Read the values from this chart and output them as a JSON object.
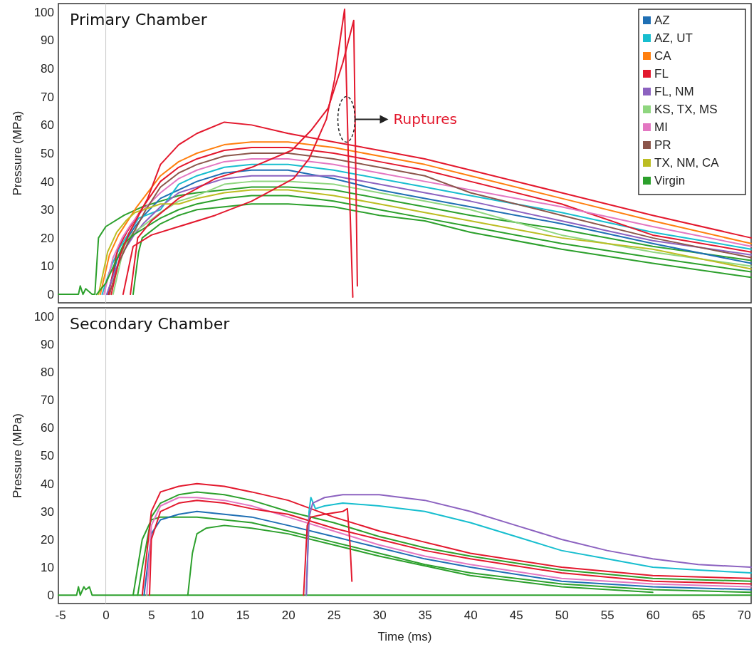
{
  "chart_data": [
    {
      "type": "line",
      "title": "Primary Chamber",
      "ylabel": "Pressure (MPa)",
      "xlim": [
        -5.2,
        70.8
      ],
      "ylim": [
        -3,
        103
      ],
      "xticks": [
        -5,
        0,
        5,
        10,
        15,
        20,
        25,
        30,
        35,
        40,
        45,
        50,
        55,
        60,
        65,
        70
      ],
      "yticks": [
        0,
        10,
        20,
        30,
        40,
        50,
        60,
        70,
        80,
        90,
        100
      ],
      "tick_labels": "y",
      "legend": "top right",
      "ref_lines": [
        {
          "axis": "x",
          "value": 0,
          "color": "#c8c8c8"
        }
      ],
      "annotations": [
        {
          "text": "Ruptures",
          "x": 27.1,
          "y": 62
        }
      ],
      "series": [
        {
          "color": "#2ca02c",
          "x": [
            -5.2,
            -3,
            -2.8,
            -2.5,
            -2.2,
            -1.5,
            -1.3
          ],
          "values": [
            0,
            0,
            3,
            0,
            2,
            0,
            0
          ]
        },
        {
          "color": "#2ca02c",
          "x": [
            3,
            3.6,
            4,
            6,
            8,
            10,
            13,
            16,
            20,
            25,
            30,
            35,
            40,
            50,
            60,
            70.8
          ],
          "values": [
            0,
            15,
            20,
            25,
            28,
            30,
            31,
            32,
            32,
            31,
            28,
            26,
            22,
            16,
            11,
            6
          ]
        },
        {
          "color": "#2ca02c",
          "x": [
            -1.2,
            -0.8,
            0,
            2,
            4,
            6,
            8,
            10,
            13,
            16,
            20,
            25,
            30,
            35,
            40,
            50,
            60,
            70.8
          ],
          "values": [
            0,
            20,
            24,
            28,
            31,
            33,
            35,
            36,
            37,
            38,
            38,
            37,
            34,
            31,
            28,
            23,
            17,
            12
          ]
        },
        {
          "name": "AZ",
          "color": "#1f6fb4",
          "x": [
            0.2,
            1.2,
            2.2,
            3.2,
            4.2,
            6,
            8,
            10,
            13,
            16,
            20,
            25,
            30,
            35,
            40,
            50,
            60,
            70.8
          ],
          "values": [
            0,
            12,
            19,
            24,
            28,
            34,
            37,
            40,
            43,
            44,
            44,
            41,
            37,
            34,
            31,
            25,
            18,
            11
          ]
        },
        {
          "name": "AZ, UT",
          "color": "#17becf",
          "x": [
            -0.4,
            0.6,
            1.6,
            2.6,
            3.6,
            6,
            8,
            10,
            13,
            16,
            20,
            25,
            30,
            35,
            40,
            50,
            60,
            70.8
          ],
          "values": [
            0,
            10,
            17,
            22,
            27,
            30,
            39,
            42,
            45,
            46,
            46,
            44,
            41,
            38,
            35,
            29,
            22,
            16
          ]
        },
        {
          "name": "CA",
          "color": "#ff7f0e",
          "x": [
            -0.6,
            0.4,
            1.4,
            2.4,
            3.4,
            6,
            8,
            10,
            13,
            16,
            20,
            25,
            30,
            35,
            40,
            50,
            60,
            70.8
          ],
          "values": [
            0,
            14,
            21,
            26,
            31,
            42,
            47,
            50,
            53,
            54,
            54,
            52,
            49,
            46,
            42,
            34,
            26,
            18
          ]
        },
        {
          "name": "FL",
          "color": "#e3182d",
          "x": [
            0.3,
            1.3,
            2.3,
            3.3,
            4.3,
            6,
            8,
            10,
            13,
            16,
            20,
            25,
            30,
            35,
            40,
            50,
            60,
            70.8
          ],
          "values": [
            0,
            16,
            22,
            27,
            32,
            40,
            45,
            48,
            51,
            52,
            52,
            50,
            47,
            44,
            40,
            32,
            21,
            15
          ]
        },
        {
          "name": "FL, NM",
          "color": "#8c62c0",
          "x": [
            0.1,
            1.1,
            2.1,
            3.1,
            4.1,
            6,
            8,
            10,
            13,
            16,
            20,
            25,
            30,
            35,
            40,
            50,
            60,
            70.8
          ],
          "values": [
            0,
            9,
            16,
            21,
            25,
            31,
            36,
            38,
            41,
            42,
            42,
            42,
            39,
            36,
            33,
            26,
            19,
            14
          ]
        },
        {
          "name": "KS, TX, MS",
          "color": "#8fd67f",
          "x": [
            0.8,
            2,
            3,
            4,
            6,
            8,
            10,
            13,
            16,
            20,
            25,
            30,
            35,
            40,
            50,
            60,
            70.8
          ],
          "values": [
            0,
            17,
            22,
            24,
            29,
            33,
            35,
            39,
            40,
            40,
            39,
            36,
            33,
            30,
            21,
            15,
            10
          ]
        },
        {
          "name": "MI",
          "color": "#e377c2",
          "x": [
            -0.2,
            0.8,
            1.8,
            2.8,
            3.8,
            6,
            8,
            10,
            13,
            16,
            20,
            25,
            30,
            35,
            40,
            50,
            60,
            70.8
          ],
          "values": [
            0,
            13,
            20,
            25,
            29,
            36,
            41,
            44,
            47,
            48,
            48,
            46,
            43,
            40,
            37,
            31,
            24,
            17
          ]
        },
        {
          "name": "PR",
          "color": "#8c564b",
          "x": [
            0.4,
            1.4,
            2.4,
            3.4,
            4.4,
            6,
            8,
            10,
            13,
            16,
            20,
            25,
            30,
            35,
            40,
            50,
            60,
            70.8
          ],
          "values": [
            0,
            11,
            18,
            24,
            30,
            38,
            43,
            46,
            49,
            50,
            50,
            48,
            45,
            42,
            36,
            28,
            20,
            13
          ]
        },
        {
          "name": "TX, NM, CA",
          "color": "#bcbd22",
          "x": [
            -0.8,
            0.2,
            1.2,
            2.2,
            3.2,
            6,
            8,
            10,
            13,
            16,
            20,
            25,
            30,
            35,
            40,
            50,
            60,
            70.8
          ],
          "values": [
            0,
            15,
            22,
            26,
            29,
            32,
            32,
            34,
            36,
            37,
            37,
            35,
            32,
            29,
            26,
            20,
            16,
            9
          ]
        },
        {
          "name": "Virgin",
          "color": "#2ca02c",
          "x": [
            -1,
            0,
            1,
            2,
            3,
            4,
            6,
            8,
            10,
            13,
            16,
            20,
            25,
            30,
            35,
            40,
            50,
            60,
            70.8
          ],
          "values": [
            0,
            4,
            11,
            18,
            21,
            23,
            27,
            30,
            32,
            34,
            35,
            35,
            33,
            30,
            27,
            24,
            18,
            13,
            8
          ]
        },
        {
          "color": "#e3182d",
          "x": [
            0.6,
            1.6,
            2.6,
            3.6,
            4.6,
            6,
            8,
            10,
            13,
            16,
            20,
            25,
            30,
            35,
            40,
            50,
            60,
            70.8
          ],
          "values": [
            0,
            14,
            22,
            28,
            34,
            46,
            53,
            57,
            61,
            60,
            57,
            54,
            51,
            48,
            44,
            36,
            28,
            20
          ]
        },
        {
          "color": "#e3182d",
          "x": [
            1.9,
            3,
            5,
            8,
            12,
            16,
            20.6,
            22.3,
            24.2,
            25.1,
            25.7,
            26.2,
            26.6,
            27.1
          ],
          "values": [
            0,
            17,
            21,
            24,
            28,
            33,
            41,
            48,
            62,
            76,
            90,
            101,
            50,
            -1
          ]
        },
        {
          "color": "#e3182d",
          "x": [
            2.7,
            3.5,
            5,
            8,
            12,
            16,
            20.4,
            22.5,
            24.4,
            26,
            27.2,
            27.4,
            27.6
          ],
          "values": [
            0,
            20,
            26,
            34,
            41,
            45,
            51,
            58,
            66,
            82,
            97,
            50,
            3
          ]
        }
      ]
    },
    {
      "type": "line",
      "title": "Secondary Chamber",
      "xlabel": "Time (ms)",
      "ylabel": "Pressure (MPa)",
      "xlim": [
        -5.2,
        70.8
      ],
      "ylim": [
        -3,
        103
      ],
      "xticks": [
        -5,
        0,
        5,
        10,
        15,
        20,
        25,
        30,
        35,
        40,
        45,
        50,
        55,
        60,
        65,
        70
      ],
      "yticks": [
        0,
        10,
        20,
        30,
        40,
        50,
        60,
        70,
        80,
        90,
        100
      ],
      "ref_lines": [
        {
          "axis": "x",
          "value": 0,
          "color": "#c8c8c8"
        }
      ],
      "series": [
        {
          "color": "#2ca02c",
          "x": [
            -5.2,
            -3.2,
            -3,
            -2.8,
            -2.4,
            -2.2,
            -1.8,
            -1.5,
            -1.3,
            70.8
          ],
          "values": [
            0,
            0,
            3,
            0,
            3,
            2,
            3,
            0,
            0,
            0
          ]
        },
        {
          "color": "#2ca02c",
          "x": [
            3,
            4,
            5,
            6,
            8,
            10,
            13,
            16,
            20,
            25,
            30,
            35,
            40,
            50,
            60,
            70.8
          ],
          "values": [
            0,
            20,
            27,
            28,
            28,
            28,
            27,
            26,
            23,
            19,
            15,
            11,
            8,
            4,
            2,
            1
          ]
        },
        {
          "color": "#2ca02c",
          "x": [
            3.5,
            4,
            5,
            6,
            8,
            10,
            13,
            16,
            20,
            25,
            30,
            35,
            40,
            50,
            60,
            70.8
          ],
          "values": [
            0,
            10,
            28,
            33,
            36,
            37,
            36,
            34,
            30,
            26,
            21,
            17,
            14,
            9,
            6,
            5
          ]
        },
        {
          "color": "#2ca02c",
          "x": [
            9,
            9.5,
            10,
            11,
            13,
            16,
            20,
            25,
            30,
            40,
            50,
            60
          ],
          "values": [
            0,
            15,
            22,
            24,
            25,
            24,
            22,
            18,
            14,
            7,
            3,
            1
          ]
        },
        {
          "color": "#1f6fb4",
          "x": [
            4.2,
            5,
            6,
            8,
            10,
            13,
            16,
            20,
            25,
            30,
            35,
            40,
            50,
            60,
            70.8
          ],
          "values": [
            0,
            22,
            27,
            29,
            30,
            29,
            28,
            25,
            21,
            17,
            13,
            10,
            5,
            3,
            2
          ]
        },
        {
          "color": "#e377c2",
          "x": [
            4.5,
            5,
            6,
            8,
            10,
            13,
            16,
            20,
            25,
            30,
            35,
            40,
            50,
            60,
            70.8
          ],
          "values": [
            0,
            25,
            32,
            35,
            35,
            34,
            32,
            28,
            23,
            18,
            14,
            11,
            6,
            4,
            3
          ]
        },
        {
          "color": "#e3182d",
          "x": [
            4,
            5,
            6,
            8,
            10,
            13,
            16,
            20,
            25,
            30,
            35,
            40,
            50,
            60,
            70.8
          ],
          "values": [
            0,
            30,
            37,
            39,
            40,
            39,
            37,
            34,
            28,
            23,
            19,
            15,
            10,
            7,
            6
          ]
        },
        {
          "color": "#e3182d",
          "x": [
            4.8,
            5,
            6,
            8,
            10,
            13,
            16,
            20,
            25,
            30,
            35,
            40,
            50,
            60,
            70.8
          ],
          "values": [
            0,
            20,
            30,
            33,
            34,
            33,
            31,
            29,
            24,
            20,
            16,
            13,
            8,
            5,
            4
          ]
        },
        {
          "color": "#17becf",
          "x": [
            22,
            22.3,
            22.5,
            23,
            24,
            26,
            30,
            35,
            40,
            45,
            50,
            55,
            60,
            65,
            70.8
          ],
          "values": [
            0,
            30,
            35,
            31,
            32,
            33,
            32,
            30,
            26,
            21,
            16,
            13,
            10,
            9,
            8
          ]
        },
        {
          "color": "#8c62c0",
          "x": [
            22,
            22.3,
            22.7,
            24,
            26,
            30,
            35,
            40,
            45,
            50,
            55,
            60,
            65,
            70.8
          ],
          "values": [
            0,
            28,
            33,
            35,
            36,
            36,
            34,
            30,
            25,
            20,
            16,
            13,
            11,
            10
          ]
        },
        {
          "color": "#e3182d",
          "x": [
            21.7,
            22.1,
            22.5,
            24,
            26,
            26.5,
            26.8,
            27
          ],
          "values": [
            0,
            25,
            28,
            29,
            30,
            31,
            18,
            5
          ]
        }
      ]
    }
  ]
}
